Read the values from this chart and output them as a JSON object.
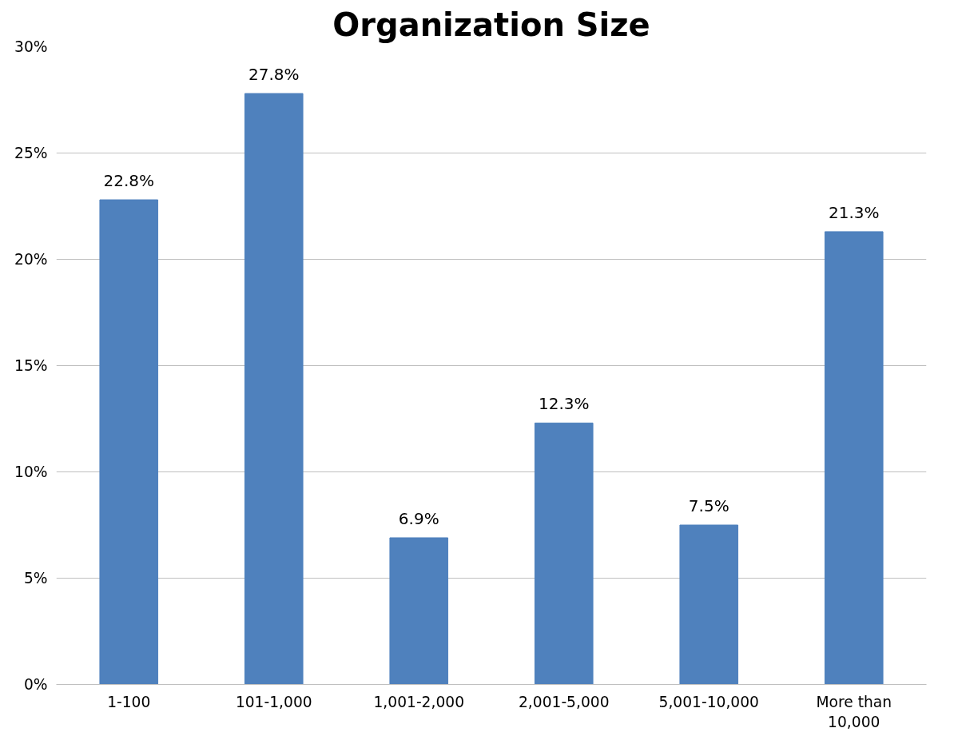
{
  "chart_data": {
    "type": "bar",
    "title": "Organization Size",
    "categories": [
      "1-100",
      "101-1,000",
      "1,001-2,000",
      "2,001-5,000",
      "5,001-10,000",
      "More than 10,000"
    ],
    "values": [
      22.8,
      27.8,
      6.9,
      12.3,
      7.5,
      21.3
    ],
    "value_labels": [
      "22.8%",
      "27.8%",
      "6.9%",
      "12.3%",
      "7.5%",
      "21.3%"
    ],
    "color": "#4f81bd",
    "ylim": [
      0,
      30
    ],
    "yticks": [
      {
        "value": 0,
        "label": "0%"
      },
      {
        "value": 5,
        "label": "5%"
      },
      {
        "value": 10,
        "label": "10%"
      },
      {
        "value": 15,
        "label": "15%"
      },
      {
        "value": 20,
        "label": "20%"
      },
      {
        "value": 25,
        "label": "25%"
      },
      {
        "value": 30,
        "label": "30%"
      }
    ],
    "grid": "y"
  }
}
